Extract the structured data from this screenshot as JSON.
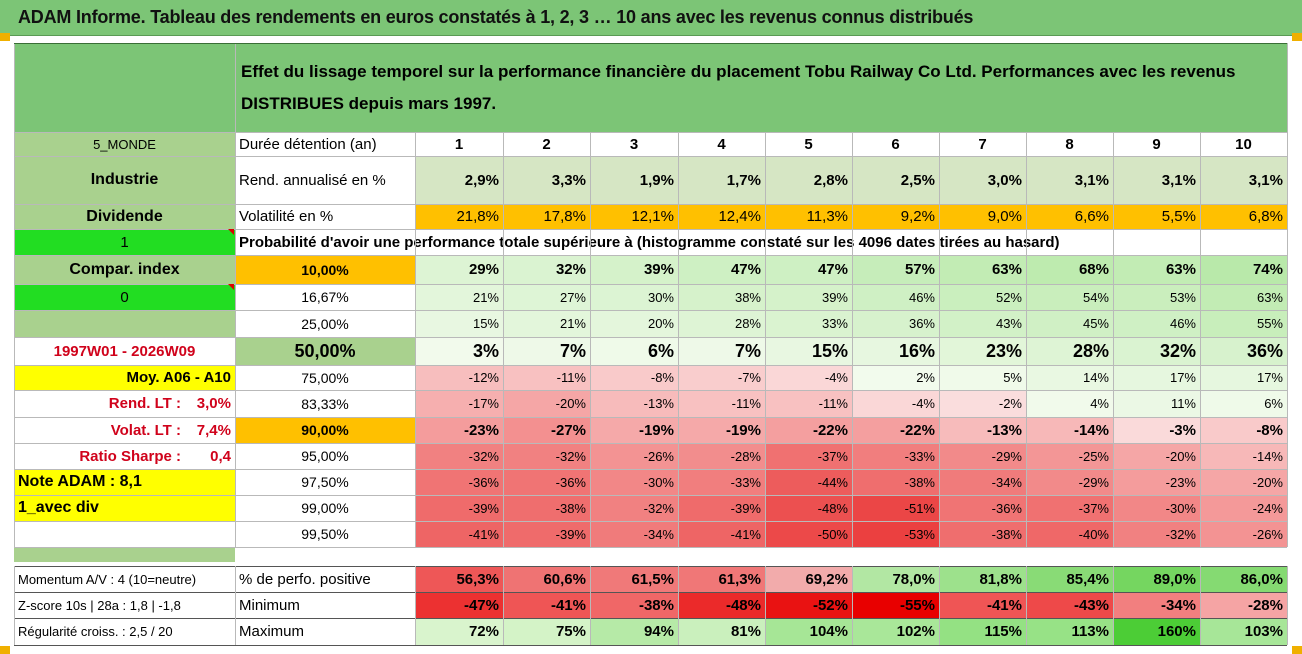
{
  "page_title": "ADAM Informe. Tableau des rendements en euros constatés à 1, 2, 3 … 10 ans avec les revenus connus distribués",
  "company": "Tobu Railway Co Ltd",
  "header_text": "Effet du lissage temporel sur la performance financière du placement Tobu Railway Co Ltd. Performances avec les revenus DISTRIBUES depuis mars 1997.",
  "left_labels": {
    "region": "5_MONDE",
    "sector": "Industrie",
    "income_type": "Dividende",
    "flag1": "1",
    "compar_index": "Compar. index",
    "flag0": "0",
    "period": "1997W01 - 2026W09",
    "moy": "Moy. A06 - A10",
    "rend_lt_label": "Rend. LT :",
    "rend_lt_value": "3,0%",
    "volat_lt_label": "Volat. LT :",
    "volat_lt_value": "7,4%",
    "sharpe_label": "Ratio Sharpe :",
    "sharpe_value": "0,4",
    "note_adam": "Note ADAM : 8,1",
    "avec_div": "1_avec div",
    "momentum": "Momentum A/V : 4 (10=neutre)",
    "zscore": "Z-score 10s | 28a : 1,8 | -1,8",
    "regularite": "Régularité croiss. : 2,5 / 20"
  },
  "years": [
    "1",
    "2",
    "3",
    "4",
    "5",
    "6",
    "7",
    "8",
    "9",
    "10"
  ],
  "duree_label": "Durée détention (an)",
  "rend_label": "Rend. annualisé en %",
  "rend_values": [
    "2,9%",
    "3,3%",
    "1,9%",
    "1,7%",
    "2,8%",
    "2,5%",
    "3,0%",
    "3,1%",
    "3,1%",
    "3,1%"
  ],
  "vol_label": "Volatilité en %",
  "vol_values": [
    "21,8%",
    "17,8%",
    "12,1%",
    "12,4%",
    "11,3%",
    "9,2%",
    "9,0%",
    "6,6%",
    "5,5%",
    "6,8%"
  ],
  "prob_label": "Probabilité d'avoir une performance totale supérieure à (histogramme constaté sur les 4096 dates tirées au hasard)",
  "prob_rows": [
    {
      "threshold": "10,00%",
      "values": [
        "29%",
        "32%",
        "39%",
        "47%",
        "47%",
        "57%",
        "63%",
        "68%",
        "63%",
        "74%"
      ]
    },
    {
      "threshold": "16,67%",
      "values": [
        "21%",
        "27%",
        "30%",
        "38%",
        "39%",
        "46%",
        "52%",
        "54%",
        "53%",
        "63%"
      ]
    },
    {
      "threshold": "25,00%",
      "values": [
        "15%",
        "21%",
        "20%",
        "28%",
        "33%",
        "36%",
        "43%",
        "45%",
        "46%",
        "55%"
      ]
    },
    {
      "threshold": "50,00%",
      "values": [
        "3%",
        "7%",
        "6%",
        "7%",
        "15%",
        "16%",
        "23%",
        "28%",
        "32%",
        "36%"
      ]
    },
    {
      "threshold": "75,00%",
      "values": [
        "-12%",
        "-11%",
        "-8%",
        "-7%",
        "-4%",
        "2%",
        "5%",
        "14%",
        "17%",
        "17%"
      ]
    },
    {
      "threshold": "83,33%",
      "values": [
        "-17%",
        "-20%",
        "-13%",
        "-11%",
        "-11%",
        "-4%",
        "-2%",
        "4%",
        "11%",
        "6%"
      ]
    },
    {
      "threshold": "90,00%",
      "values": [
        "-23%",
        "-27%",
        "-19%",
        "-19%",
        "-22%",
        "-22%",
        "-13%",
        "-14%",
        "-3%",
        "-8%"
      ]
    },
    {
      "threshold": "95,00%",
      "values": [
        "-32%",
        "-32%",
        "-26%",
        "-28%",
        "-37%",
        "-33%",
        "-29%",
        "-25%",
        "-20%",
        "-14%"
      ]
    },
    {
      "threshold": "97,50%",
      "values": [
        "-36%",
        "-36%",
        "-30%",
        "-33%",
        "-44%",
        "-38%",
        "-34%",
        "-29%",
        "-23%",
        "-20%"
      ]
    },
    {
      "threshold": "99,00%",
      "values": [
        "-39%",
        "-38%",
        "-32%",
        "-39%",
        "-48%",
        "-51%",
        "-36%",
        "-37%",
        "-30%",
        "-24%"
      ]
    },
    {
      "threshold": "99,50%",
      "values": [
        "-41%",
        "-39%",
        "-34%",
        "-41%",
        "-50%",
        "-53%",
        "-38%",
        "-40%",
        "-32%",
        "-26%"
      ]
    }
  ],
  "pos_label": "% de perfo. positive",
  "pos_values": [
    "56,3%",
    "60,6%",
    "61,5%",
    "61,3%",
    "69,2%",
    "78,0%",
    "81,8%",
    "85,4%",
    "89,0%",
    "86,0%"
  ],
  "min_label": "Minimum",
  "min_values": [
    "-47%",
    "-41%",
    "-38%",
    "-48%",
    "-52%",
    "-55%",
    "-41%",
    "-43%",
    "-34%",
    "-28%"
  ],
  "max_label": "Maximum",
  "max_values": [
    "72%",
    "75%",
    "94%",
    "81%",
    "104%",
    "102%",
    "115%",
    "113%",
    "160%",
    "103%"
  ],
  "colors": {
    "header_green": "#7cc576",
    "orange": "#ffc000",
    "yellow": "#ffff00",
    "bright_green": "#22dd22",
    "label_green": "#a9d18e",
    "rend_green": "#d6e6c4",
    "red_text": "#d0021b"
  }
}
